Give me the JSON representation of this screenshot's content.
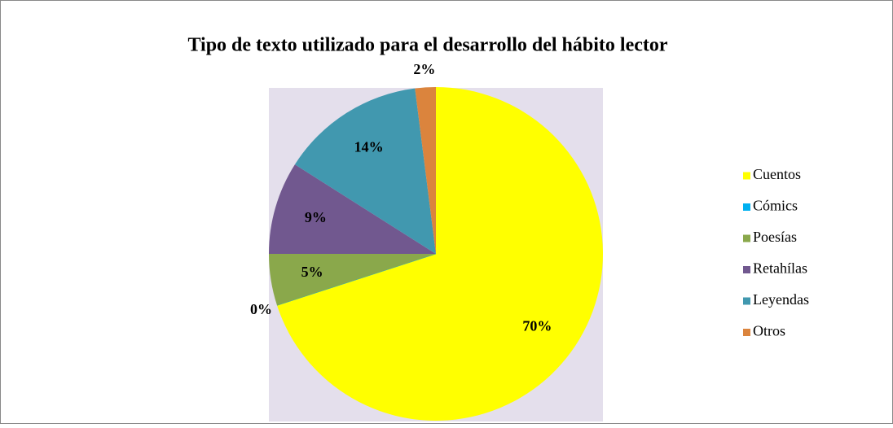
{
  "chart_data": {
    "type": "pie",
    "title": "Tipo de texto  utilizado para el desarrollo del hábito lector",
    "categories": [
      "Cuentos",
      "Cómics",
      "Poesías",
      "Retahílas",
      "Leyendas",
      "Otros"
    ],
    "values": [
      70,
      0,
      5,
      9,
      14,
      2
    ],
    "value_labels": [
      "70%",
      "0%",
      "5%",
      "9%",
      "14%",
      "2%"
    ],
    "colors": [
      "#ffff00",
      "#00b0f0",
      "#8aa84b",
      "#71588f",
      "#4198af",
      "#db843d"
    ],
    "legend": "right"
  }
}
